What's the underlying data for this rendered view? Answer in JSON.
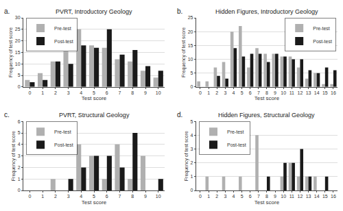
{
  "chart_data": [
    {
      "type": "bar",
      "title": "PVRT, Introductory Geology",
      "annotations": [
        "a."
      ],
      "xlabel": "Test score",
      "ylabel": "Frequency of test score",
      "categories": [
        "0",
        "1",
        "2",
        "3",
        "4",
        "5",
        "6",
        "7",
        "8",
        "9",
        "10"
      ],
      "series": [
        {
          "name": "Pre-test",
          "color": "#b0b0b0",
          "values": [
            3,
            6,
            11,
            19,
            25,
            18,
            17,
            12,
            11,
            7,
            4
          ]
        },
        {
          "name": "Post-test",
          "color": "#1a1a1a",
          "values": [
            2,
            3,
            11,
            10,
            18,
            17,
            25,
            14,
            16,
            9,
            7
          ]
        }
      ],
      "ylim": [
        0,
        30
      ],
      "yticks": [
        0,
        5,
        10,
        15,
        20,
        25,
        30
      ],
      "grid": "y",
      "legend": "upper left"
    },
    {
      "type": "bar",
      "title": "Hidden Figures, Introductory Geology",
      "annotations": [
        "b."
      ],
      "xlabel": "Test score",
      "ylabel": "Frequency of test score",
      "categories": [
        "0",
        "1",
        "2",
        "3",
        "4",
        "5",
        "6",
        "7",
        "8",
        "9",
        "10",
        "11",
        "12",
        "13",
        "14",
        "15",
        "16"
      ],
      "series": [
        {
          "name": "Pre-test",
          "color": "#b0b0b0",
          "values": [
            2,
            2,
            7,
            9,
            20,
            22,
            7,
            14,
            12,
            12,
            11,
            11,
            7,
            3,
            5,
            1,
            1
          ]
        },
        {
          "name": "Post-test",
          "color": "#1a1a1a",
          "values": [
            0,
            0,
            4,
            3,
            14,
            11,
            12,
            12,
            9,
            12,
            11,
            10,
            10,
            6,
            5,
            7,
            6
          ]
        }
      ],
      "ylim": [
        0,
        25
      ],
      "yticks": [
        0,
        5,
        10,
        15,
        20,
        25
      ],
      "grid": "y",
      "legend": "upper right"
    },
    {
      "type": "bar",
      "title": "PVRT, Structural Geology",
      "annotations": [
        "c."
      ],
      "xlabel": "Test score",
      "ylabel": "Frequency of test score",
      "categories": [
        "0",
        "1",
        "2",
        "3",
        "4",
        "5",
        "6",
        "7",
        "8",
        "9",
        "10"
      ],
      "series": [
        {
          "name": "Pre-test",
          "color": "#b0b0b0",
          "values": [
            0,
            0,
            1,
            0,
            4,
            3,
            1,
            4,
            1,
            3,
            0
          ]
        },
        {
          "name": "Post-test",
          "color": "#1a1a1a",
          "values": [
            0,
            0,
            0,
            1,
            2,
            3,
            3,
            2,
            5,
            0,
            1
          ]
        }
      ],
      "ylim": [
        0,
        6
      ],
      "yticks": [
        0,
        1,
        2,
        3,
        4,
        5,
        6
      ],
      "grid": "y",
      "legend": "upper left"
    },
    {
      "type": "bar",
      "title": "Hidden Figures, Structural Geology",
      "annotations": [
        "d."
      ],
      "xlabel": "Test score",
      "ylabel": "Frequency of test score",
      "categories": [
        "0",
        "1",
        "2",
        "3",
        "4",
        "5",
        "6",
        "7",
        "8",
        "9",
        "10",
        "11",
        "12",
        "13",
        "14",
        "15",
        "16"
      ],
      "series": [
        {
          "name": "Pre-test",
          "color": "#b0b0b0",
          "values": [
            0,
            1,
            0,
            1,
            0,
            1,
            0,
            4,
            0,
            0,
            1,
            2,
            1,
            1,
            1,
            0,
            0
          ]
        },
        {
          "name": "Post-test",
          "color": "#1a1a1a",
          "values": [
            0,
            0,
            0,
            0,
            0,
            0,
            0,
            0,
            1,
            0,
            2,
            2,
            3,
            1,
            0,
            1,
            0
          ]
        }
      ],
      "ylim": [
        0,
        5
      ],
      "yticks": [
        0,
        1,
        2,
        3,
        4,
        5
      ],
      "grid": "y",
      "legend": "upper left"
    }
  ]
}
